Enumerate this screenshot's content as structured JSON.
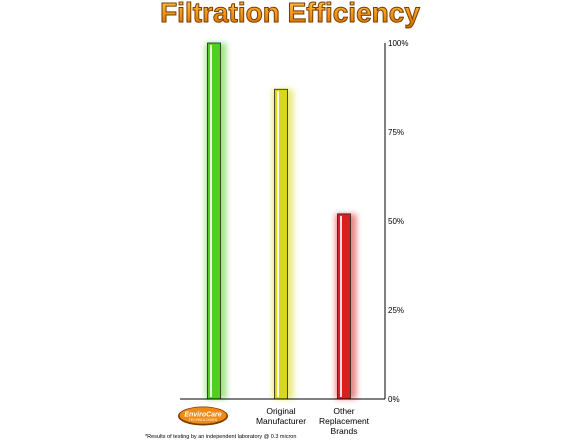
{
  "chart_data": {
    "type": "bar",
    "title": "Filtration Efficiency",
    "categories": [
      "EnviroCare Technologies",
      "Original Manufacturer",
      "Other Replacement Brands"
    ],
    "category_labels": [
      [],
      [
        "Original",
        "Manufacturer"
      ],
      [
        "Other",
        "Replacement",
        "Brands"
      ]
    ],
    "values": [
      100,
      87,
      52
    ],
    "bar_colors": [
      "#4fcf1e",
      "#d8d818",
      "#d42020"
    ],
    "yticks": [
      "0%",
      "25%",
      "50%",
      "75%",
      "100%"
    ],
    "ytick_values": [
      0,
      25,
      50,
      75,
      100
    ],
    "ylim": [
      0,
      100
    ],
    "axis_position": "right",
    "grid": false,
    "footnote": "*Results of testing by an independent laboratory @ 0.3 micron"
  },
  "logo": {
    "text": "EnviroCare",
    "subtext": "TECHNOLOGIES"
  },
  "colors": {
    "title_fill": "#f39a1a",
    "title_stroke": "#7a3c00",
    "logo_fill": "#f08a12"
  }
}
